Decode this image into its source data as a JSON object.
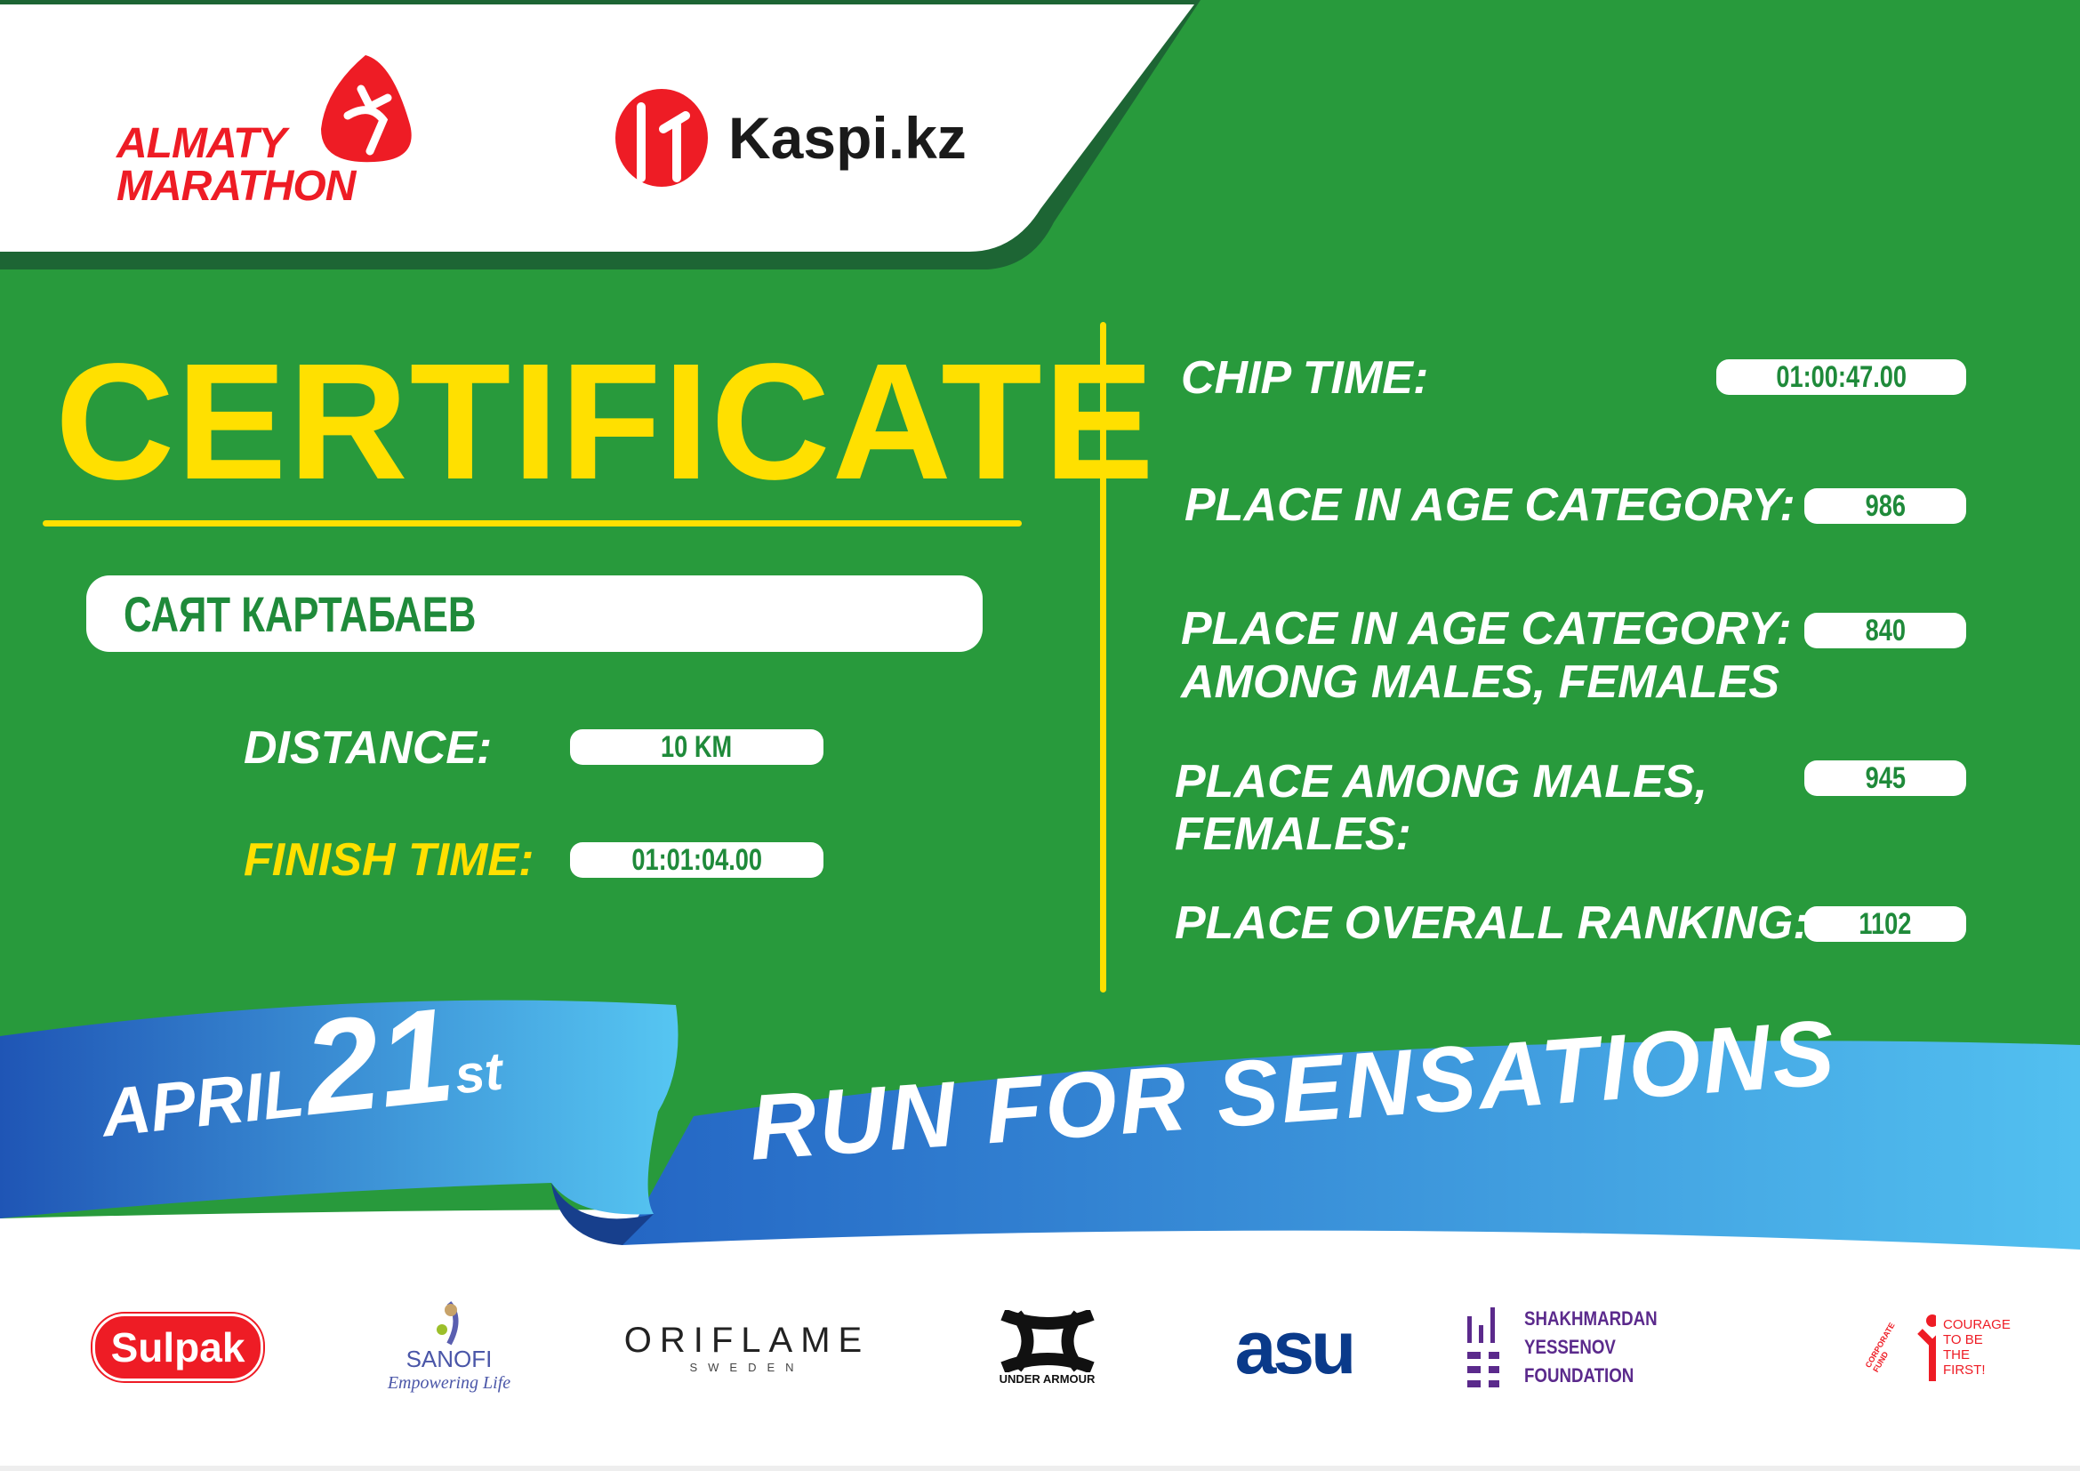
{
  "header": {
    "event_logo": [
      "ALMATY",
      "MARATHON"
    ],
    "sponsor_logo": "Kaspi.kz"
  },
  "certificate": {
    "title": "CERTIFICATE",
    "participant_name": "САЯТ КАРТАБАЕВ",
    "distance": {
      "label": "DISTANCE:",
      "value": "10 KM"
    },
    "finish_time": {
      "label": "FINISH TIME:",
      "value": "01:01:04.00"
    },
    "chip_time": {
      "label": "CHIP TIME:",
      "value": "01:00:47.00"
    },
    "place_age_category": {
      "label": "PLACE IN AGE CATEGORY:",
      "value": "986"
    },
    "place_age_category_gender": {
      "label_line1": "PLACE IN AGE CATEGORY:",
      "label_line2": "AMONG MALES, FEMALES",
      "value": "840"
    },
    "place_gender": {
      "label_line1": "PLACE AMONG MALES,",
      "label_line2": "FEMALES:",
      "value": "945"
    },
    "place_overall": {
      "label": "PLACE OVERALL RANKING:",
      "value": "1102"
    }
  },
  "ribbon": {
    "month": "APRIL",
    "day": "21",
    "suffix": "st",
    "slogan": "RUN FOR SENSATIONS"
  },
  "sponsors": [
    {
      "name": "Sulpak"
    },
    {
      "name": "SANOFI",
      "tagline": "Empowering Life"
    },
    {
      "name": "ORIFLAME",
      "tagline": "SWEDEN"
    },
    {
      "name": "UNDER ARMOUR"
    },
    {
      "name": "asu"
    },
    {
      "name": "SHAKHMARDAN YESSENOV",
      "tagline": "FOUNDATION"
    },
    {
      "name": "COURAGE TO BE THE FIRST!",
      "tagline": "CORPORATE FUND"
    }
  ],
  "colors": {
    "green": "#289a3c",
    "dark_green": "#1d6534",
    "yellow": "#ffe000",
    "red": "#ee1c25",
    "blue": "#2f7fd0"
  }
}
